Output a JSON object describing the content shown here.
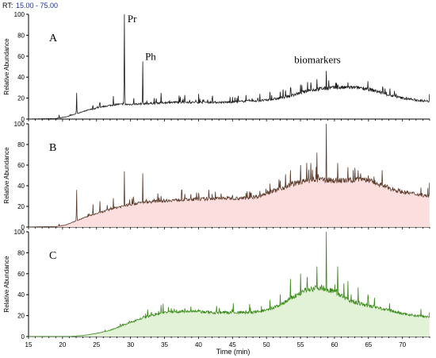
{
  "header": {
    "rt_label": "RT:",
    "rt_range": "15.00 - 75.00"
  },
  "chart_data": {
    "type": "line",
    "xlabel": "Time (min)",
    "xlim": [
      15,
      74
    ],
    "x_ticks": [
      15,
      20,
      25,
      30,
      35,
      40,
      45,
      50,
      55,
      60,
      65,
      70
    ],
    "ylabel": "Relative Abundance",
    "ylim": [
      0,
      100
    ],
    "y_ticks": [
      0,
      20,
      40,
      60,
      80,
      100
    ],
    "panels": [
      {
        "name": "A",
        "color": "#1a1a1a",
        "fill": "#ffffff",
        "baseline": [
          [
            15,
            0
          ],
          [
            19,
            0.5
          ],
          [
            20.5,
            2
          ],
          [
            22,
            5
          ],
          [
            24,
            9
          ],
          [
            26,
            12
          ],
          [
            28,
            14
          ],
          [
            30,
            14
          ],
          [
            33,
            15
          ],
          [
            36,
            16
          ],
          [
            40,
            16
          ],
          [
            44,
            16
          ],
          [
            47,
            17
          ],
          [
            50,
            18
          ],
          [
            52,
            20
          ],
          [
            54,
            23
          ],
          [
            56,
            27
          ],
          [
            58,
            29
          ],
          [
            60,
            30
          ],
          [
            62,
            30
          ],
          [
            64,
            30
          ],
          [
            66,
            27
          ],
          [
            68,
            23
          ],
          [
            70,
            20
          ],
          [
            72,
            18
          ],
          [
            74,
            17
          ]
        ],
        "peaks": [
          [
            19.5,
            4
          ],
          [
            22.1,
            25
          ],
          [
            24.5,
            13
          ],
          [
            25.5,
            16
          ],
          [
            27.5,
            22
          ],
          [
            29.1,
            100
          ],
          [
            30.5,
            20
          ],
          [
            31.8,
            55
          ],
          [
            33.5,
            20
          ],
          [
            34.5,
            25
          ],
          [
            38,
            23
          ],
          [
            40,
            24
          ],
          [
            42,
            20
          ],
          [
            45,
            21
          ],
          [
            47,
            23
          ],
          [
            49,
            24
          ],
          [
            50.5,
            26
          ],
          [
            52,
            26
          ],
          [
            53.5,
            30
          ],
          [
            55,
            33
          ],
          [
            56.5,
            35
          ],
          [
            57.4,
            38
          ],
          [
            58.8,
            46
          ],
          [
            60.5,
            33
          ],
          [
            62,
            35
          ],
          [
            63.5,
            30
          ],
          [
            65,
            28
          ]
        ]
      },
      {
        "name": "B",
        "color": "#5a3a2a",
        "fill": "#fcdede",
        "baseline": [
          [
            15,
            0
          ],
          [
            19,
            0.5
          ],
          [
            20.5,
            2
          ],
          [
            22,
            6
          ],
          [
            24,
            11
          ],
          [
            26,
            15
          ],
          [
            28,
            19
          ],
          [
            30,
            22
          ],
          [
            32,
            24
          ],
          [
            34,
            25
          ],
          [
            36,
            26
          ],
          [
            40,
            27
          ],
          [
            44,
            28
          ],
          [
            47,
            28
          ],
          [
            49,
            30
          ],
          [
            50,
            33
          ],
          [
            52,
            37
          ],
          [
            54,
            42
          ],
          [
            56,
            45
          ],
          [
            58,
            46
          ],
          [
            60,
            45
          ],
          [
            62,
            45
          ],
          [
            64,
            47
          ],
          [
            66,
            43
          ],
          [
            68,
            38
          ],
          [
            70,
            34
          ],
          [
            72,
            32
          ],
          [
            74,
            30
          ]
        ],
        "peaks": [
          [
            19.5,
            3
          ],
          [
            22.1,
            36
          ],
          [
            24.5,
            22
          ],
          [
            25.5,
            25
          ],
          [
            27.5,
            28
          ],
          [
            29.1,
            54
          ],
          [
            30.5,
            26
          ],
          [
            31.8,
            52
          ],
          [
            33.5,
            27
          ],
          [
            34.5,
            30
          ],
          [
            38,
            32
          ],
          [
            40,
            33
          ],
          [
            42,
            32
          ],
          [
            45,
            31
          ],
          [
            47,
            33
          ],
          [
            49,
            35
          ],
          [
            50.5,
            42
          ],
          [
            52,
            45
          ],
          [
            53.5,
            55
          ],
          [
            55,
            60
          ],
          [
            56.5,
            62
          ],
          [
            57.4,
            72
          ],
          [
            58.8,
            100
          ],
          [
            60.5,
            62
          ],
          [
            62,
            58
          ],
          [
            63.5,
            55
          ],
          [
            65,
            50
          ]
        ]
      },
      {
        "name": "C",
        "color": "#3a8a1a",
        "fill": "#e2f2d6",
        "baseline": [
          [
            15,
            0
          ],
          [
            21,
            0
          ],
          [
            23,
            1
          ],
          [
            25,
            3
          ],
          [
            27,
            6
          ],
          [
            29,
            11
          ],
          [
            31,
            16
          ],
          [
            33,
            20
          ],
          [
            35,
            23
          ],
          [
            37,
            24
          ],
          [
            39,
            24
          ],
          [
            42,
            23
          ],
          [
            45,
            23
          ],
          [
            48,
            23
          ],
          [
            50,
            25
          ],
          [
            52,
            30
          ],
          [
            54,
            38
          ],
          [
            56,
            45
          ],
          [
            58,
            47
          ],
          [
            60,
            43
          ],
          [
            62,
            35
          ],
          [
            64,
            31
          ],
          [
            66,
            28
          ],
          [
            68,
            25
          ],
          [
            70,
            22
          ],
          [
            72,
            20
          ],
          [
            74,
            19
          ]
        ],
        "peaks": [
          [
            34.5,
            30
          ],
          [
            36,
            27
          ],
          [
            38,
            27
          ],
          [
            40,
            26
          ],
          [
            43,
            25
          ],
          [
            47,
            25
          ],
          [
            50.5,
            35
          ],
          [
            52,
            40
          ],
          [
            53.5,
            55
          ],
          [
            55,
            60
          ],
          [
            56,
            57
          ],
          [
            57.4,
            67
          ],
          [
            58.8,
            100
          ],
          [
            60.5,
            67
          ],
          [
            62,
            53
          ],
          [
            63.5,
            47
          ],
          [
            65,
            38
          ]
        ]
      }
    ],
    "annotations": [
      {
        "text": "Pr",
        "x": 29.1,
        "panel": "A"
      },
      {
        "text": "Ph",
        "x": 31.8,
        "panel": "A"
      },
      {
        "text": "biomarkers",
        "x": 57.5,
        "panel": "A"
      }
    ]
  }
}
